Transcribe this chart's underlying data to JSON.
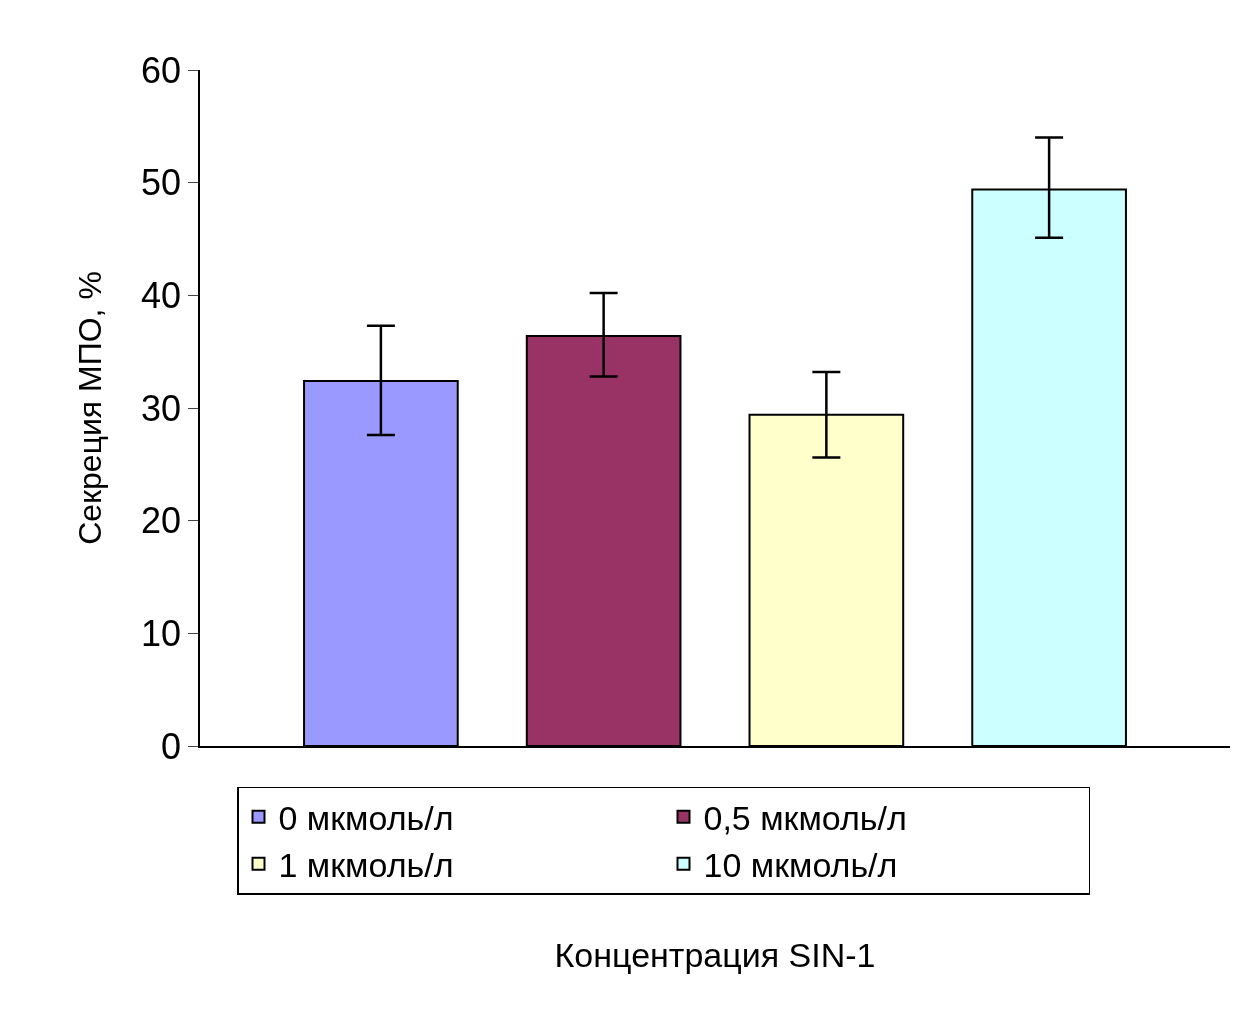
{
  "chart_data": {
    "type": "bar",
    "ylabel": "Секреция МПО, %",
    "xlabel": "Концентрация SIN-1",
    "categories": [
      null
    ],
    "series": [
      {
        "name": "0 мкмоль/л",
        "color": "#9999ff",
        "values": [
          32.4
        ],
        "errors": [
          [
            27.6,
            37.3
          ]
        ]
      },
      {
        "name": "0,5 мкмоль/л",
        "color": "#993366",
        "values": [
          36.4
        ],
        "errors": [
          [
            32.8,
            40.2
          ]
        ]
      },
      {
        "name": "1 мкмоль/л",
        "color": "#ffffcc",
        "values": [
          29.4
        ],
        "errors": [
          [
            25.6,
            33.2
          ]
        ]
      },
      {
        "name": "10 мкмоль/л",
        "color": "#ccffff",
        "values": [
          49.4
        ],
        "errors": [
          [
            45.1,
            54.0
          ]
        ]
      }
    ],
    "ylim": [
      0,
      60
    ],
    "yticks": [
      0,
      10,
      20,
      30,
      40,
      50,
      60
    ],
    "legend": "bottom"
  }
}
